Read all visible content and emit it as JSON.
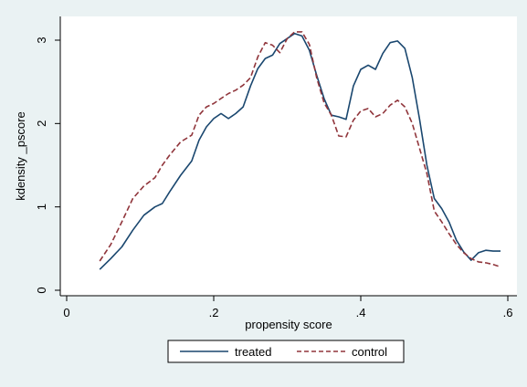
{
  "chart_data": {
    "type": "line",
    "title": "",
    "xlabel": "propensity score",
    "ylabel": "kdensity _pscore",
    "xlim": [
      0,
      0.6
    ],
    "ylim": [
      0,
      3.2
    ],
    "xticks": [
      {
        "value": 0,
        "label": "0"
      },
      {
        "value": 0.2,
        "label": ".2"
      },
      {
        "value": 0.4,
        "label": ".4"
      },
      {
        "value": 0.6,
        "label": ".6"
      }
    ],
    "yticks": [
      {
        "value": 0,
        "label": "0"
      },
      {
        "value": 1,
        "label": "1"
      },
      {
        "value": 2,
        "label": "2"
      },
      {
        "value": 3,
        "label": "3"
      }
    ],
    "grid": false,
    "legend_position": "bottom",
    "colors": {
      "background": "#eaf2f3",
      "plot_background": "#ffffff",
      "treated": "#1a476f",
      "control": "#90353b"
    },
    "series": [
      {
        "name": "treated",
        "style": "solid",
        "x": [
          0.045,
          0.06,
          0.075,
          0.09,
          0.105,
          0.12,
          0.13,
          0.14,
          0.155,
          0.17,
          0.18,
          0.19,
          0.2,
          0.21,
          0.22,
          0.23,
          0.24,
          0.25,
          0.26,
          0.27,
          0.28,
          0.29,
          0.3,
          0.31,
          0.32,
          0.33,
          0.34,
          0.35,
          0.36,
          0.37,
          0.38,
          0.39,
          0.4,
          0.41,
          0.42,
          0.43,
          0.44,
          0.45,
          0.46,
          0.47,
          0.48,
          0.49,
          0.5,
          0.51,
          0.52,
          0.53,
          0.54,
          0.55,
          0.56,
          0.57,
          0.58,
          0.59
        ],
        "y": [
          0.25,
          0.38,
          0.52,
          0.72,
          0.9,
          1.0,
          1.04,
          1.18,
          1.38,
          1.55,
          1.8,
          1.96,
          2.06,
          2.12,
          2.06,
          2.12,
          2.2,
          2.45,
          2.66,
          2.78,
          2.82,
          2.96,
          3.02,
          3.08,
          3.05,
          2.88,
          2.58,
          2.3,
          2.1,
          2.08,
          2.05,
          2.45,
          2.65,
          2.7,
          2.65,
          2.84,
          2.97,
          2.99,
          2.9,
          2.55,
          2.05,
          1.5,
          1.1,
          0.98,
          0.82,
          0.6,
          0.46,
          0.36,
          0.45,
          0.48,
          0.47,
          0.47
        ]
      },
      {
        "name": "control",
        "style": "dashed",
        "x": [
          0.045,
          0.06,
          0.075,
          0.09,
          0.105,
          0.12,
          0.13,
          0.14,
          0.155,
          0.17,
          0.18,
          0.19,
          0.2,
          0.21,
          0.22,
          0.23,
          0.24,
          0.25,
          0.26,
          0.27,
          0.28,
          0.29,
          0.3,
          0.31,
          0.32,
          0.33,
          0.34,
          0.35,
          0.36,
          0.37,
          0.38,
          0.39,
          0.4,
          0.41,
          0.42,
          0.43,
          0.44,
          0.45,
          0.46,
          0.47,
          0.48,
          0.49,
          0.5,
          0.51,
          0.52,
          0.53,
          0.54,
          0.55,
          0.56,
          0.57,
          0.58,
          0.59
        ],
        "y": [
          0.35,
          0.55,
          0.82,
          1.1,
          1.25,
          1.35,
          1.5,
          1.62,
          1.78,
          1.86,
          2.1,
          2.2,
          2.24,
          2.3,
          2.36,
          2.4,
          2.46,
          2.55,
          2.8,
          2.97,
          2.94,
          2.85,
          3.02,
          3.1,
          3.1,
          2.95,
          2.55,
          2.25,
          2.1,
          1.85,
          1.84,
          2.04,
          2.15,
          2.18,
          2.08,
          2.12,
          2.22,
          2.28,
          2.2,
          2.0,
          1.7,
          1.4,
          0.95,
          0.82,
          0.68,
          0.55,
          0.45,
          0.38,
          0.34,
          0.33,
          0.31,
          0.28
        ]
      }
    ]
  }
}
